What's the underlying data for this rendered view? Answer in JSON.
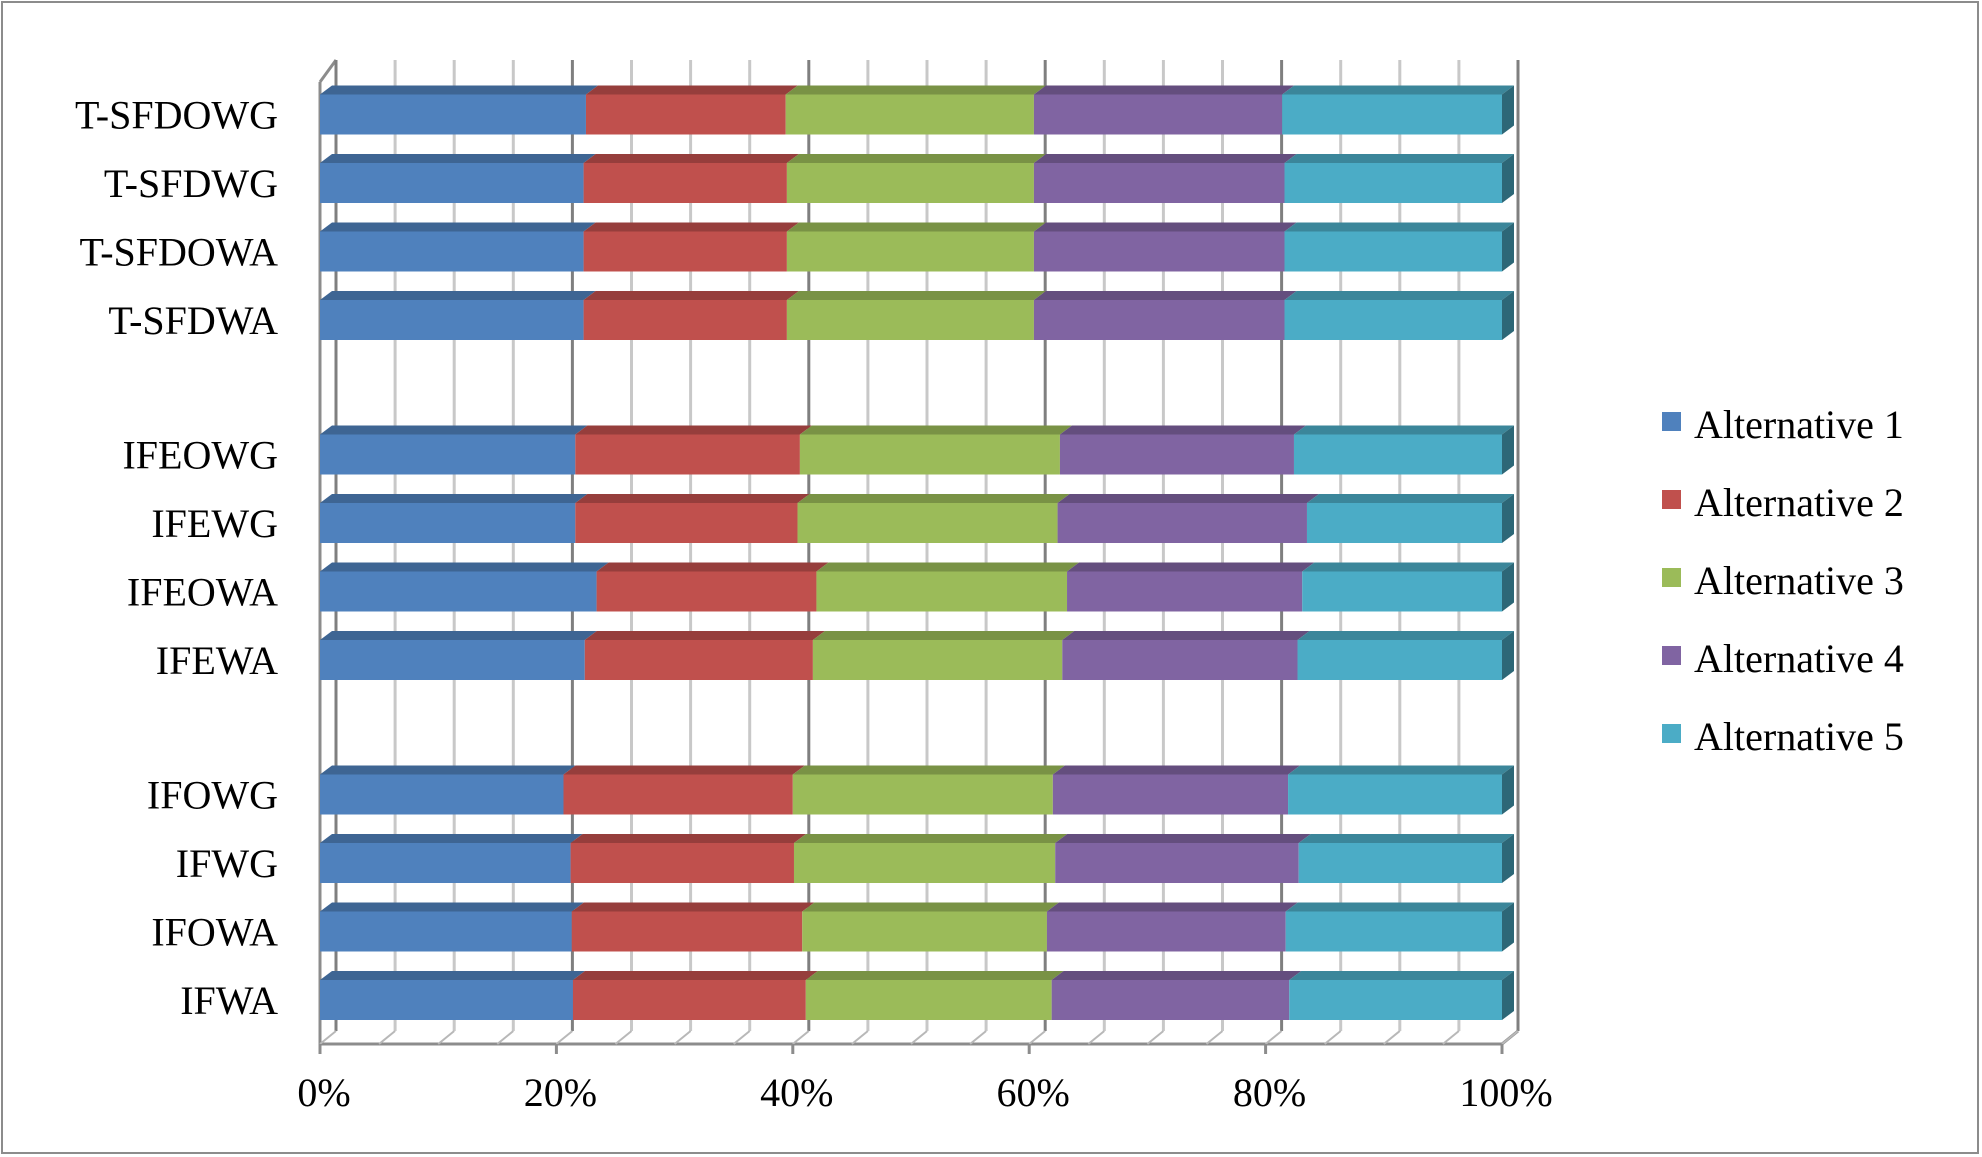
{
  "chart_data": {
    "type": "bar",
    "orientation": "horizontal",
    "stacked": "100%",
    "style": "3d",
    "categories": [
      "IFWA",
      "IFOWA",
      "IFWG",
      "IFOWG",
      "IFEWA",
      "IFEOWA",
      "IFEWG",
      "IFEOWG",
      "T-SFDWA",
      "T-SFDOWA",
      "T-SFDWG",
      "T-SFDOWG"
    ],
    "series": [
      {
        "name": "Alternative 1",
        "color": "#4f81bd",
        "values": [
          21.4,
          21.3,
          21.2,
          20.6,
          22.4,
          23.4,
          21.6,
          21.6,
          22.3,
          22.3,
          22.3,
          22.5
        ]
      },
      {
        "name": "Alternative 2",
        "color": "#c0504d",
        "values": [
          19.7,
          19.5,
          18.9,
          19.4,
          19.3,
          18.6,
          18.8,
          19.0,
          17.2,
          17.2,
          17.2,
          16.9
        ]
      },
      {
        "name": "Alternative 3",
        "color": "#9bbb59",
        "values": [
          20.8,
          20.7,
          22.1,
          22.0,
          21.1,
          21.2,
          22.0,
          22.0,
          20.9,
          20.9,
          20.9,
          21.0
        ]
      },
      {
        "name": "Alternative 4",
        "color": "#8064a2",
        "values": [
          20.1,
          20.2,
          20.6,
          19.9,
          19.9,
          19.9,
          21.1,
          19.8,
          21.2,
          21.2,
          21.2,
          21.0
        ]
      },
      {
        "name": "Alternative 5",
        "color": "#4bacc6",
        "values": [
          18.0,
          18.3,
          17.2,
          18.1,
          17.3,
          16.9,
          16.5,
          17.6,
          18.4,
          18.4,
          18.4,
          18.6
        ]
      }
    ],
    "x_ticks": [
      "0%",
      "20%",
      "40%",
      "60%",
      "80%",
      "100%"
    ],
    "xlim": [
      0,
      100
    ],
    "grid": true,
    "legend": "right"
  }
}
